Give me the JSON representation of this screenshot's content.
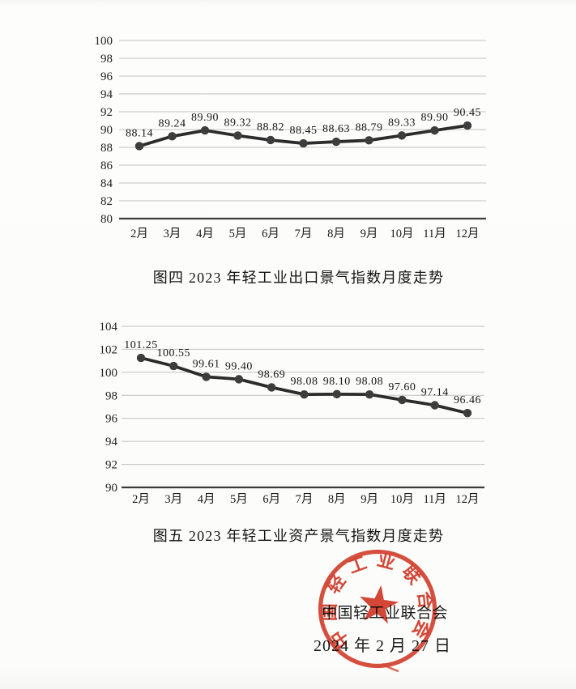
{
  "page": {
    "background": "#fcfcfa",
    "ink": "#1b1b1b",
    "grid_color": "#c2c2c2",
    "axis_color": "#3c3c3c",
    "line_color": "#2c2c2c",
    "marker_color": "#3d3d3d"
  },
  "chart_data": [
    {
      "type": "line",
      "title": "图四 2023 年轻工业出口景气指数月度走势",
      "categories": [
        "2月",
        "3月",
        "4月",
        "5月",
        "6月",
        "7月",
        "8月",
        "9月",
        "10月",
        "11月",
        "12月"
      ],
      "values": [
        88.14,
        89.24,
        89.9,
        89.32,
        88.82,
        88.45,
        88.63,
        88.79,
        89.33,
        89.9,
        90.45
      ],
      "xlabel": "",
      "ylabel": "",
      "ylim": [
        80,
        100
      ],
      "ytick_step": 2,
      "grid": true,
      "legend": "none",
      "data_labels": true,
      "marker": "circle"
    },
    {
      "type": "line",
      "title": "图五 2023 年轻工业资产景气指数月度走势",
      "categories": [
        "2月",
        "3月",
        "4月",
        "5月",
        "6月",
        "7月",
        "8月",
        "9月",
        "10月",
        "11月",
        "12月"
      ],
      "values": [
        101.25,
        100.55,
        99.61,
        99.4,
        98.69,
        98.08,
        98.1,
        98.08,
        97.6,
        97.14,
        96.46
      ],
      "xlabel": "",
      "ylabel": "",
      "ylim": [
        90,
        104
      ],
      "ytick_step": 2,
      "grid": true,
      "legend": "none",
      "data_labels": true,
      "marker": "circle"
    }
  ],
  "footer": {
    "org_name": "中国轻工业联合会",
    "date": "2024 年 2 月 27 日",
    "seal": {
      "text": "中国轻工业联合会",
      "color": "#d23a28"
    }
  }
}
